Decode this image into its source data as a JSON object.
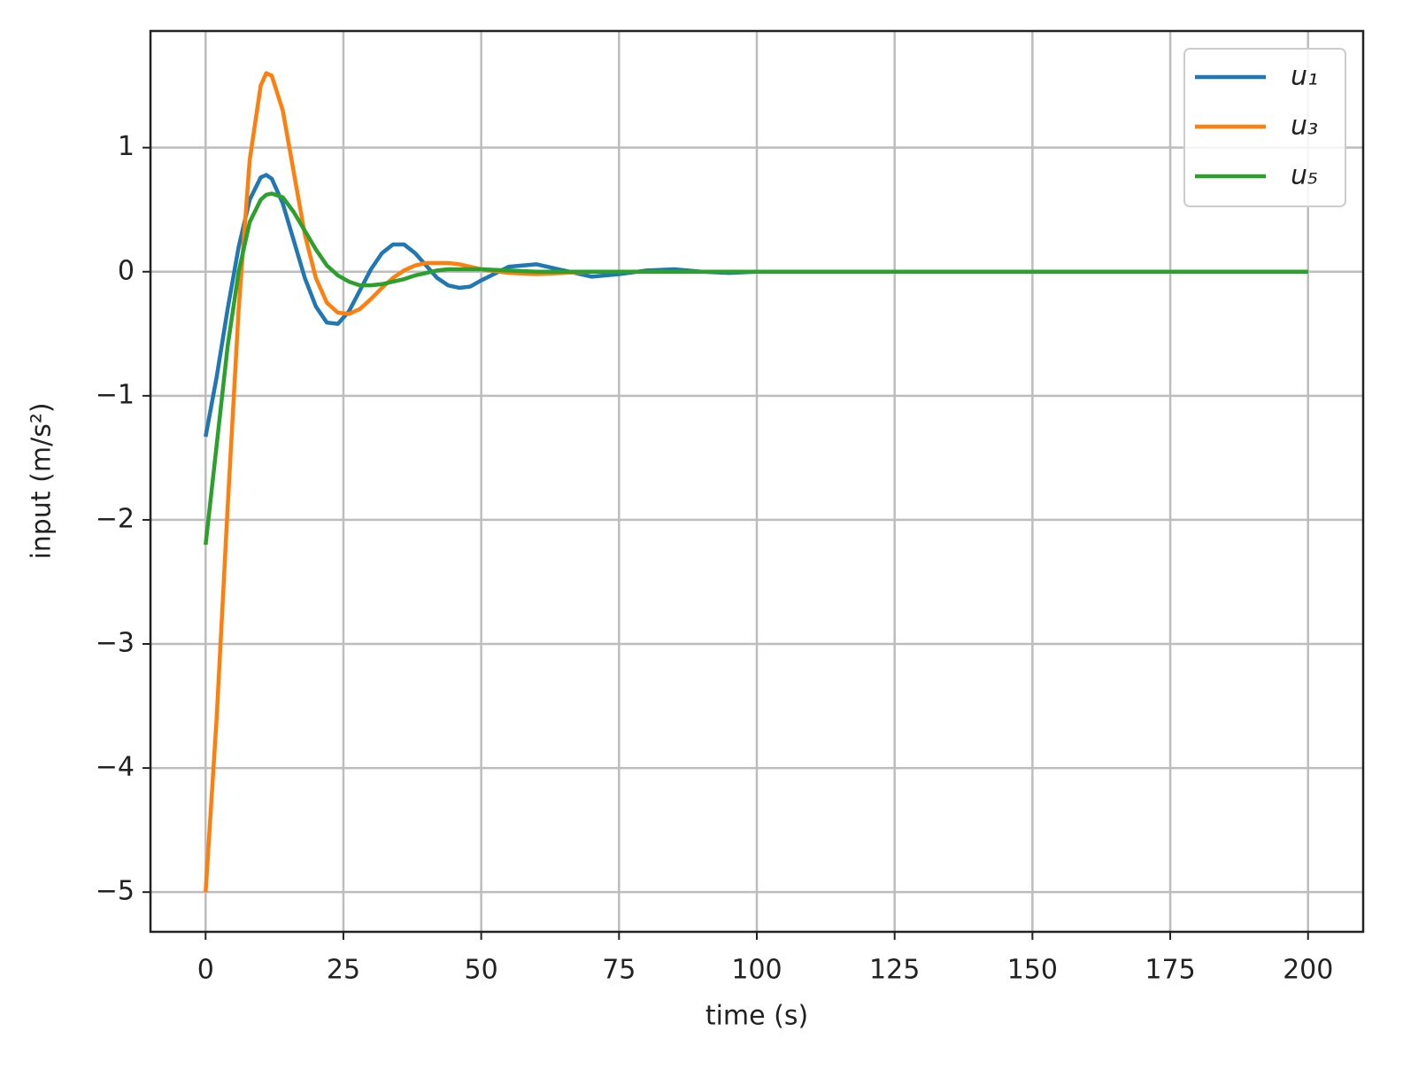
{
  "chart_data": {
    "type": "line",
    "xlabel": "time (s)",
    "ylabel": "input (m/s²)",
    "x": [
      0,
      2,
      4,
      6,
      8,
      10,
      11,
      12,
      14,
      16,
      18,
      20,
      22,
      24,
      26,
      28,
      30,
      32,
      34,
      36,
      38,
      40,
      42,
      44,
      46,
      48,
      50,
      55,
      60,
      65,
      70,
      75,
      80,
      85,
      90,
      95,
      100,
      120,
      140,
      160,
      180,
      200
    ],
    "series": [
      {
        "name": "u₁",
        "color": "#1f77b4",
        "values": [
          -1.33,
          -0.85,
          -0.3,
          0.2,
          0.58,
          0.76,
          0.78,
          0.75,
          0.55,
          0.25,
          -0.05,
          -0.28,
          -0.41,
          -0.42,
          -0.32,
          -0.15,
          0.02,
          0.15,
          0.22,
          0.22,
          0.15,
          0.05,
          -0.05,
          -0.11,
          -0.13,
          -0.12,
          -0.07,
          0.04,
          0.06,
          0.01,
          -0.04,
          -0.02,
          0.01,
          0.02,
          0,
          -0.01,
          0,
          0,
          0,
          0,
          0,
          0
        ]
      },
      {
        "name": "u₃",
        "color": "#ff7f0e",
        "values": [
          -5,
          -3.6,
          -1.9,
          -0.3,
          0.9,
          1.5,
          1.6,
          1.58,
          1.3,
          0.8,
          0.3,
          -0.05,
          -0.25,
          -0.33,
          -0.34,
          -0.3,
          -0.22,
          -0.13,
          -0.05,
          0.01,
          0.05,
          0.07,
          0.07,
          0.07,
          0.06,
          0.04,
          0.02,
          -0.01,
          -0.02,
          -0.01,
          0,
          0,
          0,
          0,
          0,
          0,
          0,
          0,
          0,
          0,
          0,
          0
        ]
      },
      {
        "name": "u₅",
        "color": "#2ca02c",
        "values": [
          -2.2,
          -1.4,
          -0.6,
          0,
          0.4,
          0.58,
          0.62,
          0.63,
          0.6,
          0.48,
          0.33,
          0.18,
          0.05,
          -0.03,
          -0.08,
          -0.11,
          -0.11,
          -0.1,
          -0.08,
          -0.06,
          -0.03,
          -0.01,
          0.01,
          0.02,
          0.02,
          0.02,
          0.02,
          0.01,
          0,
          0,
          0,
          0,
          0,
          0,
          0,
          0,
          0,
          0,
          0,
          0,
          0,
          0
        ]
      }
    ],
    "xlim": [
      -10,
      210
    ],
    "xticks": [
      0,
      25,
      50,
      75,
      100,
      125,
      150,
      175,
      200
    ],
    "ylim": [
      -5.32,
      1.94
    ],
    "yticks": [
      {
        "value": -5,
        "label": "−5"
      },
      {
        "value": -4,
        "label": "−4"
      },
      {
        "value": -3,
        "label": "−3"
      },
      {
        "value": -2,
        "label": "−2"
      },
      {
        "value": -1,
        "label": "−1"
      },
      0,
      1
    ],
    "grid": true,
    "legend": "upper right"
  }
}
